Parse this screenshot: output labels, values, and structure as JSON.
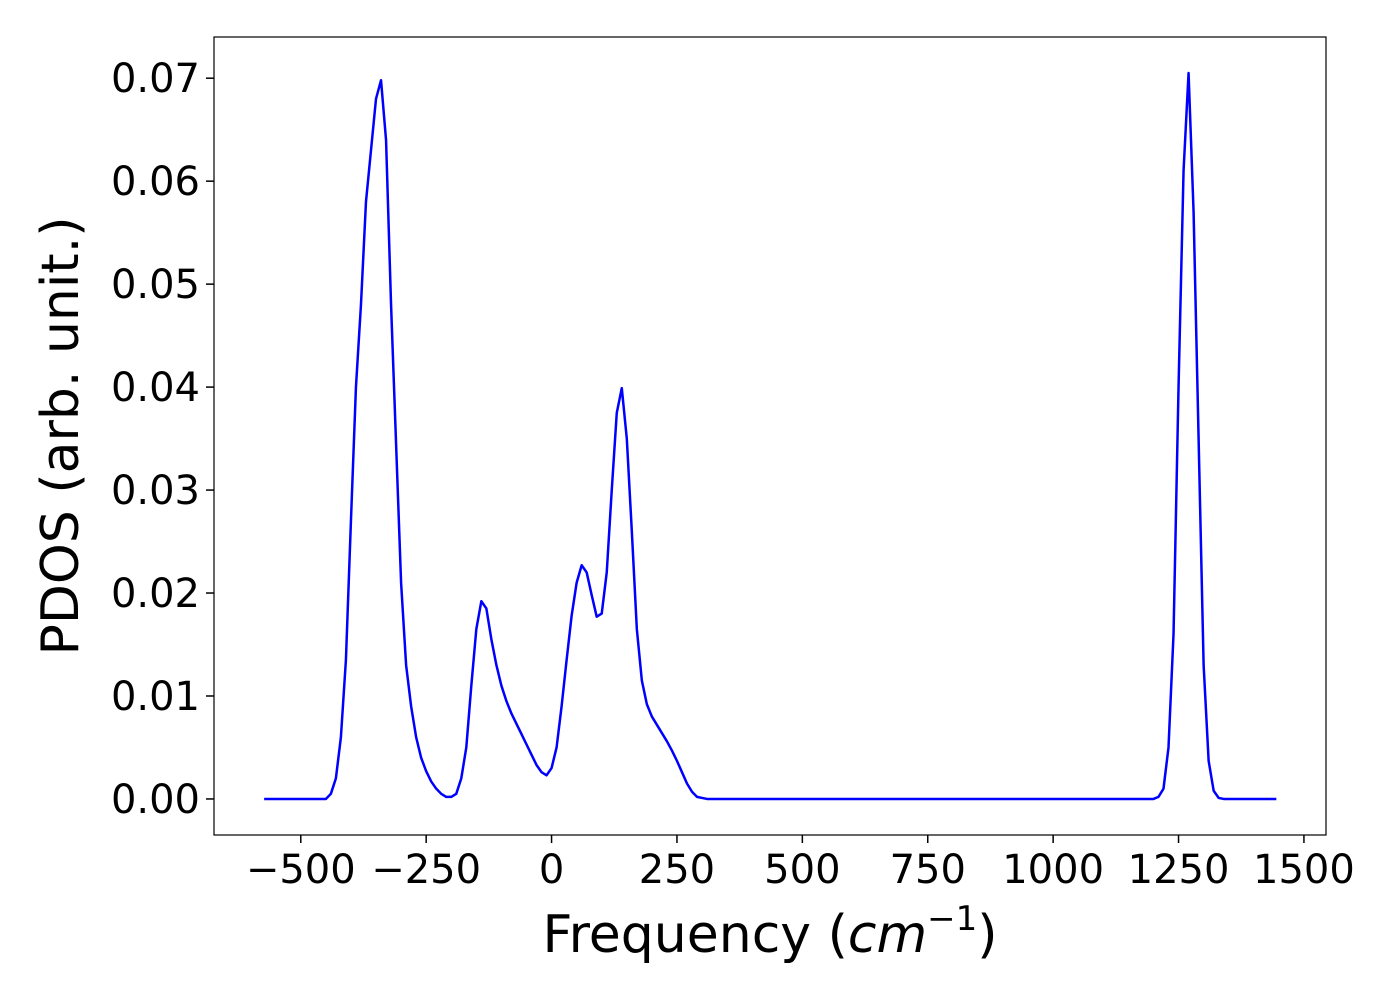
{
  "chart_data": {
    "type": "line",
    "xlabel_parts": [
      "Frequency (",
      "cm",
      "−1",
      ")"
    ],
    "ylabel": "PDOS (arb. unit.)",
    "xlim": [
      -673,
      1544
    ],
    "ylim": [
      -0.0035,
      0.074
    ],
    "xticks": [
      {
        "value": -500,
        "label": "−500"
      },
      {
        "value": -250,
        "label": "−250"
      },
      0,
      250,
      500,
      750,
      1000,
      1250,
      1500
    ],
    "yticks": [
      {
        "value": 0,
        "label": "0.00"
      },
      0.01,
      0.02,
      0.03,
      0.04,
      0.05,
      0.06,
      0.07
    ],
    "grid": false,
    "x": [
      -573,
      -450,
      -440,
      -430,
      -420,
      -410,
      -400,
      -390,
      -380,
      -370,
      -360,
      -350,
      -340,
      -330,
      -320,
      -300,
      -290,
      -280,
      -270,
      -260,
      -250,
      -240,
      -230,
      -220,
      -210,
      -200,
      -190,
      -180,
      -170,
      -160,
      -150,
      -140,
      -130,
      -120,
      -110,
      -100,
      -90,
      -80,
      -70,
      -60,
      -50,
      -40,
      -30,
      -20,
      -10,
      0,
      10,
      20,
      30,
      40,
      50,
      60,
      70,
      80,
      90,
      100,
      110,
      120,
      130,
      140,
      150,
      160,
      170,
      180,
      190,
      200,
      210,
      220,
      230,
      240,
      250,
      260,
      270,
      280,
      290,
      300,
      310,
      1200,
      1210,
      1220,
      1230,
      1240,
      1250,
      1260,
      1270,
      1280,
      1290,
      1300,
      1310,
      1320,
      1330,
      1340,
      1445
    ],
    "series": [
      {
        "color": "#0000ff",
        "values": [
          0,
          0,
          0.0005,
          0.002,
          0.006,
          0.0135,
          0.027,
          0.04,
          0.048,
          0.058,
          0.063,
          0.068,
          0.0698,
          0.064,
          0.048,
          0.021,
          0.013,
          0.009,
          0.006,
          0.004,
          0.0027,
          0.0017,
          0.001,
          0.0005,
          0.0002,
          0.0002,
          0.0005,
          0.002,
          0.005,
          0.011,
          0.0165,
          0.0192,
          0.0185,
          0.0155,
          0.013,
          0.011,
          0.0095,
          0.0083,
          0.0073,
          0.0063,
          0.0053,
          0.0043,
          0.0033,
          0.0026,
          0.0023,
          0.003,
          0.005,
          0.009,
          0.0135,
          0.0178,
          0.021,
          0.0227,
          0.022,
          0.0198,
          0.0177,
          0.018,
          0.022,
          0.03,
          0.0375,
          0.0399,
          0.035,
          0.026,
          0.0165,
          0.0115,
          0.0092,
          0.008,
          0.0072,
          0.0064,
          0.0056,
          0.0047,
          0.0037,
          0.0026,
          0.0015,
          0.0007,
          0.0002,
          0.0001,
          0,
          0,
          0.0002,
          0.001,
          0.005,
          0.016,
          0.04,
          0.061,
          0.0705,
          0.057,
          0.035,
          0.013,
          0.0037,
          0.0008,
          0.0001,
          0,
          0
        ]
      }
    ]
  }
}
